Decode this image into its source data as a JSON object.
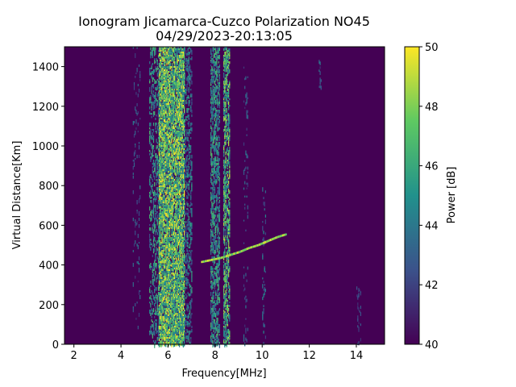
{
  "chart_data": {
    "type": "heatmap",
    "title": "Ionogram Jicamarca-Cuzco Polarization NO45",
    "subtitle": "04/29/2023-20:13:05",
    "xlabel": "Frequency[MHz]",
    "ylabel": "Virtual Distance[Km]",
    "xlim": [
      1.6,
      15.2
    ],
    "ylim": [
      0,
      1500
    ],
    "xticks": [
      2,
      4,
      6,
      8,
      10,
      12,
      14
    ],
    "yticks": [
      0,
      200,
      400,
      600,
      800,
      1000,
      1200,
      1400
    ],
    "colorbar": {
      "label": "Power [dB]",
      "range": [
        40,
        50
      ],
      "ticks": [
        40,
        42,
        44,
        46,
        48,
        50
      ],
      "colormap": "viridis"
    },
    "background_color": "#440154",
    "features": [
      {
        "kind": "band",
        "x_range": [
          5.6,
          6.7
        ],
        "y_range": [
          0,
          1500
        ],
        "peak_db": 50,
        "density": 0.75
      },
      {
        "kind": "band",
        "x_range": [
          5.2,
          5.6
        ],
        "y_range": [
          0,
          1500
        ],
        "peak_db": 47,
        "density": 0.25
      },
      {
        "kind": "band",
        "x_range": [
          6.7,
          7.0
        ],
        "y_range": [
          0,
          1500
        ],
        "peak_db": 46,
        "density": 0.25
      },
      {
        "kind": "band",
        "x_range": [
          7.8,
          8.2
        ],
        "y_range": [
          0,
          1500
        ],
        "peak_db": 47,
        "density": 0.45
      },
      {
        "kind": "band",
        "x_range": [
          8.35,
          8.6
        ],
        "y_range": [
          0,
          1500
        ],
        "peak_db": 49,
        "density": 0.45
      },
      {
        "kind": "band",
        "x_range": [
          9.2,
          9.4
        ],
        "y_range": [
          0,
          1400
        ],
        "peak_db": 44,
        "density": 0.08
      },
      {
        "kind": "band",
        "x_range": [
          10.0,
          10.15
        ],
        "y_range": [
          0,
          800
        ],
        "peak_db": 45,
        "density": 0.1
      },
      {
        "kind": "band",
        "x_range": [
          4.5,
          4.8
        ],
        "y_range": [
          0,
          1500
        ],
        "peak_db": 44,
        "density": 0.06
      },
      {
        "kind": "band",
        "x_range": [
          12.4,
          12.5
        ],
        "y_range": [
          1300,
          1450
        ],
        "peak_db": 44,
        "density": 0.2
      },
      {
        "kind": "band",
        "x_range": [
          14.0,
          14.2
        ],
        "y_range": [
          0,
          300
        ],
        "peak_db": 43,
        "density": 0.1
      },
      {
        "kind": "trace",
        "name": "",
        "x": [
          7.4,
          7.8,
          8.2,
          8.6,
          9.0,
          9.4,
          9.8,
          10.2,
          10.6,
          11.0
        ],
        "y": [
          420,
          430,
          440,
          455,
          470,
          490,
          505,
          525,
          545,
          560
        ],
        "peak_db": 50
      }
    ],
    "grid": false
  }
}
